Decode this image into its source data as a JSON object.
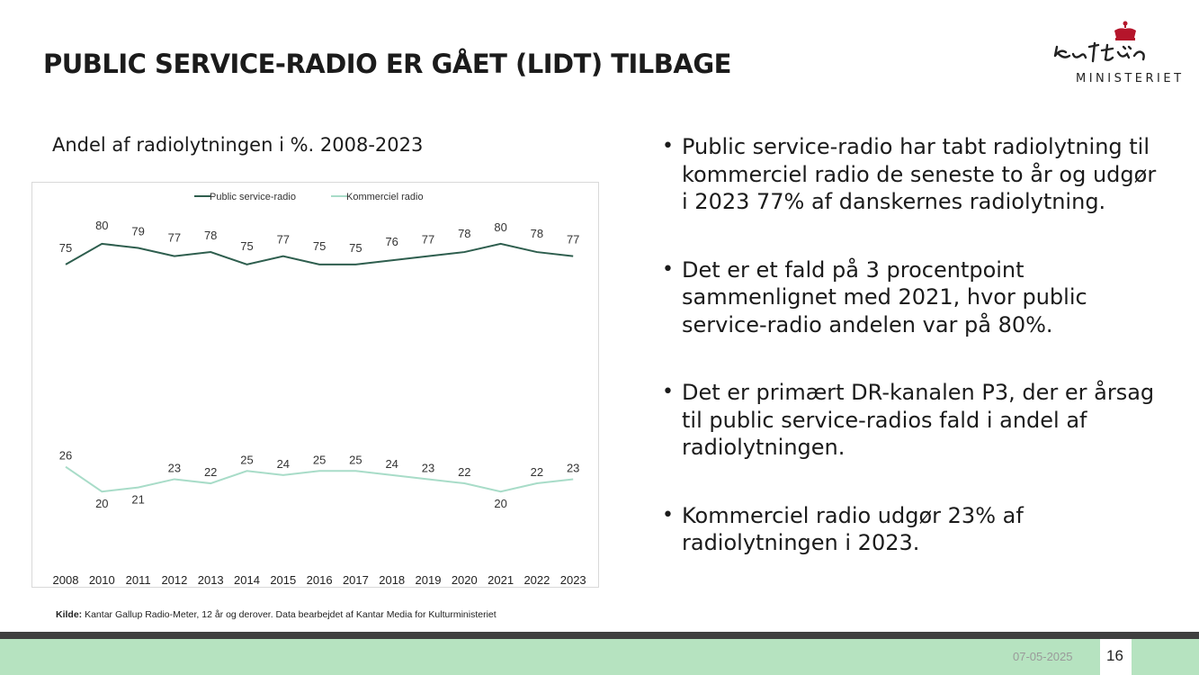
{
  "slide": {
    "title": "PUBLIC SERVICE-RADIO ER GÅET (LIDT) TILBAGE",
    "logo": {
      "script_text": "Kultur",
      "text": "MINISTERIET"
    },
    "chart_title": "Andel af radiolytningen i %. 2008-2023",
    "source_label": "Kilde:",
    "source_text": " Kantar Gallup Radio-Meter, 12 år og derover. Data bearbejdet af Kantar Media for Kulturministeriet",
    "bullets": [
      "Public service-radio har tabt radiolytning til kommerciel radio de seneste to år og udgør i 2023 77% af danskernes radiolytning.",
      "Det er et fald på 3 procentpoint sammenlignet med 2021, hvor public service-radio andelen var på 80%.",
      "Det er primært DR-kanalen P3, der er årsag til public service-radios fald i andel af radiolytningen.",
      "Kommerciel radio udgør 23% af radiolytningen i 2023."
    ],
    "footer": {
      "date": "07-05-2025",
      "page": "16"
    },
    "colors": {
      "footer_band": "#b6e3c0",
      "footer_line": "#3f3f3f",
      "public_series": "#2e5e4e",
      "commercial_series": "#a8dcc8"
    }
  },
  "chart_data": {
    "type": "line",
    "x": [
      "2008",
      "2010",
      "2011",
      "2012",
      "2013",
      "2014",
      "2015",
      "2016",
      "2017",
      "2018",
      "2019",
      "2020",
      "2021",
      "2022",
      "2023"
    ],
    "series": [
      {
        "name": "Public service-radio",
        "values": [
          75,
          80,
          79,
          77,
          78,
          75,
          77,
          75,
          75,
          76,
          77,
          78,
          80,
          78,
          77
        ]
      },
      {
        "name": "Kommerciel radio",
        "values": [
          26,
          20,
          21,
          23,
          22,
          25,
          24,
          25,
          25,
          24,
          23,
          22,
          20,
          22,
          23
        ]
      }
    ],
    "legend": "top",
    "grid": false,
    "ylim": [
      0,
      90
    ]
  }
}
